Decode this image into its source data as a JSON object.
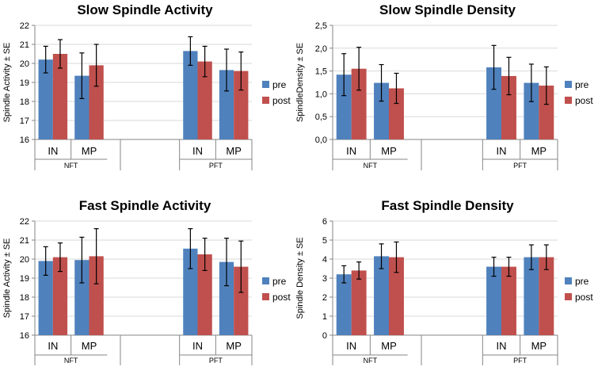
{
  "colors": {
    "pre": "#4F81BD",
    "post": "#C0504D",
    "axis": "#868686",
    "grid": "#D9D9D9",
    "error": "#000000"
  },
  "chart_data": [
    {
      "type": "bar",
      "title": "Slow Spindle Activity",
      "ylabel": "Spindle Activity ± SE",
      "ylim": [
        16,
        22
      ],
      "yticks": [
        "16",
        "17",
        "18",
        "19",
        "20",
        "21",
        "22"
      ],
      "ytick_values": [
        16,
        17,
        18,
        19,
        20,
        21,
        22
      ],
      "groups": [
        {
          "label": "NFT",
          "categories": [
            "IN",
            "MP"
          ]
        },
        {
          "label": "PFT",
          "categories": [
            "IN",
            "MP"
          ]
        }
      ],
      "series": [
        {
          "name": "pre",
          "values": [
            20.2,
            19.35,
            20.65,
            19.65
          ],
          "errors": [
            0.7,
            1.2,
            0.75,
            1.1
          ]
        },
        {
          "name": "post",
          "values": [
            20.5,
            19.9,
            20.1,
            19.6
          ],
          "errors": [
            0.75,
            1.1,
            0.8,
            1.0
          ]
        }
      ]
    },
    {
      "type": "bar",
      "title": "Slow Spindle Density",
      "ylabel": "SpindleDensity ± SE",
      "ylim": [
        0,
        2.5
      ],
      "yticks": [
        "0,0",
        "0,5",
        "1,0",
        "1,5",
        "2,0",
        "2,5"
      ],
      "ytick_values": [
        0,
        0.5,
        1.0,
        1.5,
        2.0,
        2.5
      ],
      "groups": [
        {
          "label": "NFT",
          "categories": [
            "IN",
            "MP"
          ]
        },
        {
          "label": "PFT",
          "categories": [
            "IN",
            "MP"
          ]
        }
      ],
      "series": [
        {
          "name": "pre",
          "values": [
            1.42,
            1.24,
            1.58,
            1.24
          ],
          "errors": [
            0.46,
            0.4,
            0.48,
            0.41
          ]
        },
        {
          "name": "post",
          "values": [
            1.55,
            1.12,
            1.39,
            1.18
          ],
          "errors": [
            0.47,
            0.33,
            0.41,
            0.41
          ]
        }
      ]
    },
    {
      "type": "bar",
      "title": "Fast Spindle Activity",
      "ylabel": "Spindle Activity ± SE",
      "ylim": [
        16,
        22
      ],
      "yticks": [
        "16",
        "17",
        "18",
        "19",
        "20",
        "21",
        "22"
      ],
      "ytick_values": [
        16,
        17,
        18,
        19,
        20,
        21,
        22
      ],
      "groups": [
        {
          "label": "NFT",
          "categories": [
            "IN",
            "MP"
          ]
        },
        {
          "label": "PFT",
          "categories": [
            "IN",
            "MP"
          ]
        }
      ],
      "series": [
        {
          "name": "pre",
          "values": [
            19.9,
            19.95,
            20.55,
            19.85
          ],
          "errors": [
            0.75,
            1.2,
            1.05,
            1.25
          ]
        },
        {
          "name": "post",
          "values": [
            20.1,
            20.15,
            20.25,
            19.6
          ],
          "errors": [
            0.75,
            1.45,
            0.85,
            1.35
          ]
        }
      ]
    },
    {
      "type": "bar",
      "title": "Fast Spindle Density",
      "ylabel": "Spindle Density ± SE",
      "ylim": [
        0,
        6
      ],
      "yticks": [
        "0",
        "1",
        "2",
        "3",
        "4",
        "5",
        "6"
      ],
      "ytick_values": [
        0,
        1,
        2,
        3,
        4,
        5,
        6
      ],
      "groups": [
        {
          "label": "NFT",
          "categories": [
            "IN",
            "MP"
          ]
        },
        {
          "label": "PFT",
          "categories": [
            "IN",
            "MP"
          ]
        }
      ],
      "series": [
        {
          "name": "pre",
          "values": [
            3.2,
            4.15,
            3.6,
            4.1
          ],
          "errors": [
            0.45,
            0.65,
            0.5,
            0.65
          ]
        },
        {
          "name": "post",
          "values": [
            3.4,
            4.1,
            3.6,
            4.1
          ],
          "errors": [
            0.45,
            0.8,
            0.5,
            0.65
          ]
        }
      ]
    }
  ]
}
